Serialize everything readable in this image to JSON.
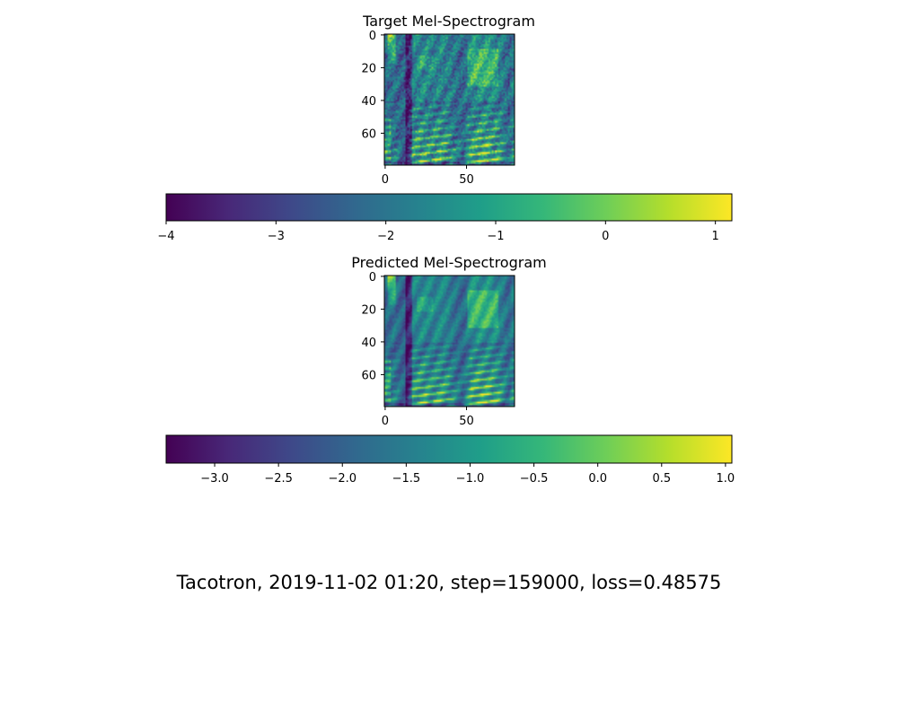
{
  "figure": {
    "caption": "Tacotron, 2019-11-02 01:20, step=159000, loss=0.48575"
  },
  "colormap": {
    "name": "viridis",
    "stops": [
      "#440154",
      "#482878",
      "#3e4989",
      "#31688e",
      "#26828e",
      "#1f9e89",
      "#35b779",
      "#6ece58",
      "#b5de2b",
      "#fde725"
    ]
  },
  "chart_data": [
    {
      "type": "heatmap",
      "title": "Target Mel-Spectrogram",
      "x_ticks": [
        0,
        50
      ],
      "y_ticks": [
        0,
        20,
        40,
        60
      ],
      "xlim": [
        -0.5,
        79.5
      ],
      "ylim": [
        79.5,
        -0.5
      ],
      "n_frames": 80,
      "n_mels": 80,
      "value_range": [
        -4.1,
        1.15
      ],
      "colorbar": {
        "orientation": "horizontal",
        "range": [
          -4.0,
          1.15
        ],
        "ticks": [
          -4,
          -3,
          -2,
          -1,
          0,
          1
        ],
        "tick_labels": [
          "−4",
          "−3",
          "−2",
          "−1",
          "0",
          "1"
        ]
      }
    },
    {
      "type": "heatmap",
      "title": "Predicted Mel-Spectrogram",
      "x_ticks": [
        0,
        50
      ],
      "y_ticks": [
        0,
        20,
        40,
        60
      ],
      "xlim": [
        -0.5,
        79.5
      ],
      "ylim": [
        79.5,
        -0.5
      ],
      "n_frames": 80,
      "n_mels": 80,
      "value_range": [
        -3.35,
        1.05
      ],
      "colorbar": {
        "orientation": "horizontal",
        "range": [
          -3.38,
          1.05
        ],
        "ticks": [
          -3.0,
          -2.5,
          -2.0,
          -1.5,
          -1.0,
          -0.5,
          0.0,
          0.5,
          1.0
        ],
        "tick_labels": [
          "−3.0",
          "−2.5",
          "−2.0",
          "−1.5",
          "−1.0",
          "−0.5",
          "0.0",
          "0.5",
          "1.0"
        ]
      }
    }
  ]
}
